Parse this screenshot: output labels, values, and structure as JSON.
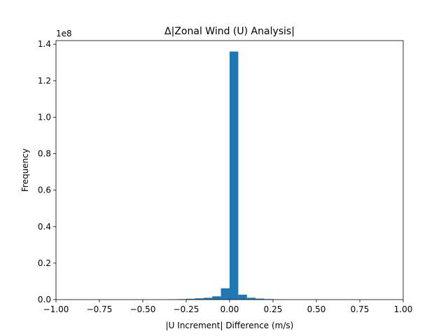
{
  "chart_data": {
    "type": "bar",
    "title": "Δ|Zonal Wind (U) Analysis|",
    "xlabel": "|U Increment| Difference (m/s)",
    "ylabel": "Frequency",
    "y_offset_label": "1e8",
    "xlim": [
      -1.0,
      1.0
    ],
    "ylim": [
      0,
      142000000
    ],
    "grid": false,
    "bar_color": "#1f77b4",
    "x_ticks": [
      -1.0,
      -0.75,
      -0.5,
      -0.25,
      0.0,
      0.25,
      0.5,
      0.75,
      1.0
    ],
    "x_tick_labels": [
      "−1.00",
      "−0.75",
      "−0.50",
      "−0.25",
      "0.00",
      "0.25",
      "0.50",
      "0.75",
      "1.00"
    ],
    "y_ticks": [
      0,
      20000000,
      40000000,
      60000000,
      80000000,
      100000000,
      120000000,
      140000000
    ],
    "y_tick_labels": [
      "0.0",
      "0.2",
      "0.4",
      "0.6",
      "0.8",
      "1.0",
      "1.2",
      "1.4"
    ],
    "bins": [
      {
        "x0": -0.35,
        "x1": -0.3,
        "value": 100000
      },
      {
        "x0": -0.3,
        "x1": -0.25,
        "value": 250000
      },
      {
        "x0": -0.25,
        "x1": -0.2,
        "value": 450000
      },
      {
        "x0": -0.2,
        "x1": -0.15,
        "value": 700000
      },
      {
        "x0": -0.15,
        "x1": -0.1,
        "value": 1000000
      },
      {
        "x0": -0.1,
        "x1": -0.05,
        "value": 1800000
      },
      {
        "x0": -0.05,
        "x1": 0.0,
        "value": 6200000
      },
      {
        "x0": 0.0,
        "x1": 0.05,
        "value": 136000000
      },
      {
        "x0": 0.05,
        "x1": 0.1,
        "value": 2700000
      },
      {
        "x0": 0.1,
        "x1": 0.15,
        "value": 1000000
      },
      {
        "x0": 0.15,
        "x1": 0.2,
        "value": 550000
      },
      {
        "x0": 0.2,
        "x1": 0.25,
        "value": 300000
      },
      {
        "x0": 0.25,
        "x1": 0.3,
        "value": 100000
      }
    ]
  }
}
